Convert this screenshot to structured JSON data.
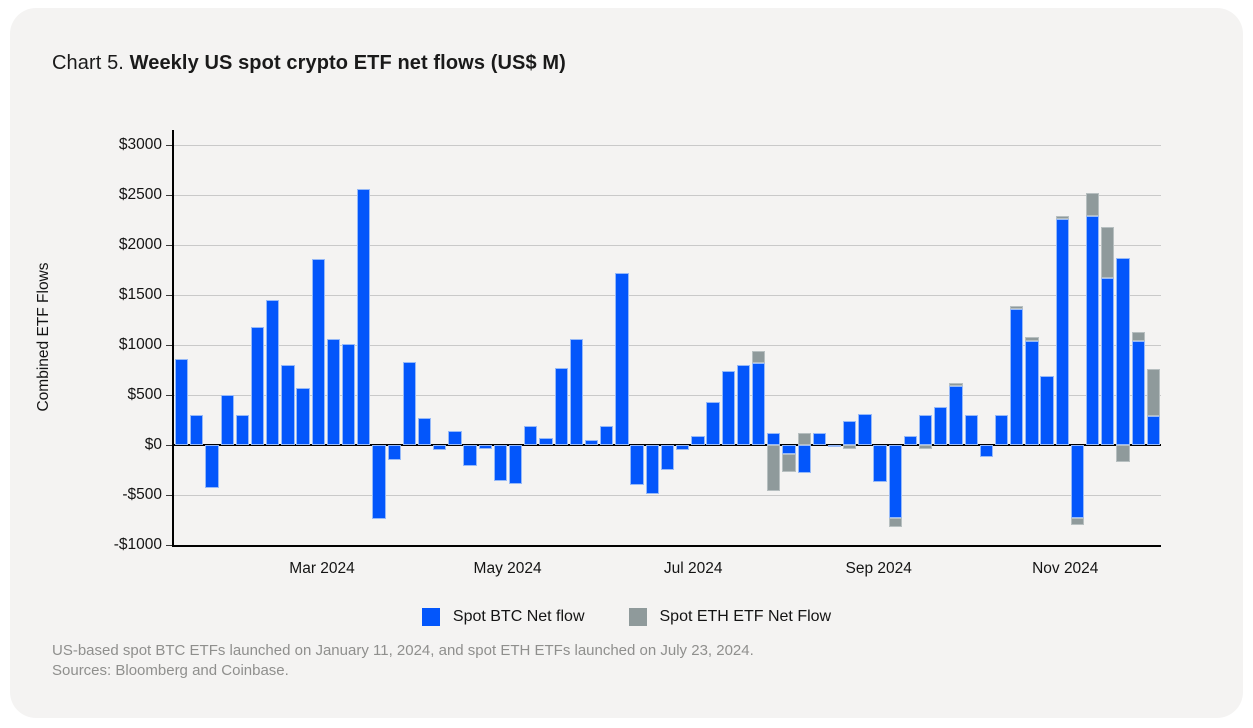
{
  "title": {
    "prefix": "Chart 5.",
    "main": "Weekly US spot crypto ETF net flows (US$ M)"
  },
  "chart_data": {
    "type": "bar",
    "stacked": true,
    "title": "Chart 5. Weekly US spot crypto ETF net flows (US$ M)",
    "xlabel": "",
    "ylabel": "Combined ETF Flows",
    "ylim": [
      -1000,
      3150
    ],
    "grid": true,
    "legend_position": "bottom",
    "y_tick_values": [
      3000,
      2500,
      2000,
      1500,
      1000,
      500,
      0,
      -500,
      -1000
    ],
    "y_tick_labels": [
      "$3000",
      "$2500",
      "$2000",
      "$1500",
      "$1000",
      "$500",
      "$0",
      "-$500",
      "-$1000"
    ],
    "x_tick_labels": [
      "Mar 2024",
      "May 2024",
      "Jul 2024",
      "Sep 2024",
      "Nov 2024"
    ],
    "x_tick_positions_pct": [
      15.0,
      33.8,
      52.6,
      71.4,
      90.3
    ],
    "series": [
      {
        "name": "Spot BTC Net flow",
        "color": "#0356fb",
        "values": [
          860,
          300,
          -430,
          500,
          300,
          1180,
          1450,
          800,
          570,
          1860,
          1060,
          1010,
          2560,
          -740,
          -150,
          830,
          270,
          -50,
          140,
          -210,
          -40,
          -360,
          -390,
          190,
          70,
          775,
          1060,
          55,
          190,
          1720,
          -400,
          -490,
          -250,
          -50,
          90,
          430,
          740,
          800,
          820,
          120,
          -90,
          -280,
          120,
          -20,
          240,
          310,
          -370,
          -730,
          90,
          300,
          380,
          590,
          300,
          -120,
          300,
          1360,
          1040,
          690,
          2260,
          -730,
          2290,
          1670,
          1870,
          1040,
          290
        ]
      },
      {
        "name": "Spot ETH ETF Net Flow",
        "color": "#8f9a9b",
        "values": [
          0,
          0,
          0,
          0,
          0,
          0,
          0,
          0,
          0,
          0,
          0,
          0,
          0,
          0,
          0,
          0,
          0,
          0,
          0,
          0,
          0,
          0,
          0,
          0,
          0,
          0,
          0,
          0,
          0,
          0,
          0,
          0,
          0,
          0,
          0,
          0,
          0,
          0,
          120,
          -460,
          -180,
          120,
          0,
          0,
          -40,
          0,
          0,
          -90,
          0,
          -40,
          0,
          30,
          0,
          0,
          0,
          30,
          40,
          0,
          30,
          -70,
          230,
          510,
          -170,
          90,
          470
        ]
      }
    ]
  },
  "legend": {
    "items": [
      {
        "label": "Spot BTC Net flow",
        "color": "#0356fb"
      },
      {
        "label": "Spot ETH ETF Net Flow",
        "color": "#8f9a9b"
      }
    ]
  },
  "footnote": {
    "line1": "US-based spot BTC ETFs launched on January 11, 2024, and spot ETH ETFs launched on July 23, 2024.",
    "line2": "Sources: Bloomberg and Coinbase."
  },
  "colors": {
    "card_background": "#f4f3f2",
    "btc_bar": "#0356fb",
    "eth_bar": "#8f9a9b",
    "gridline": "#c9c9c9",
    "axis": "#000000",
    "footnote_text": "#8f8f8d"
  }
}
